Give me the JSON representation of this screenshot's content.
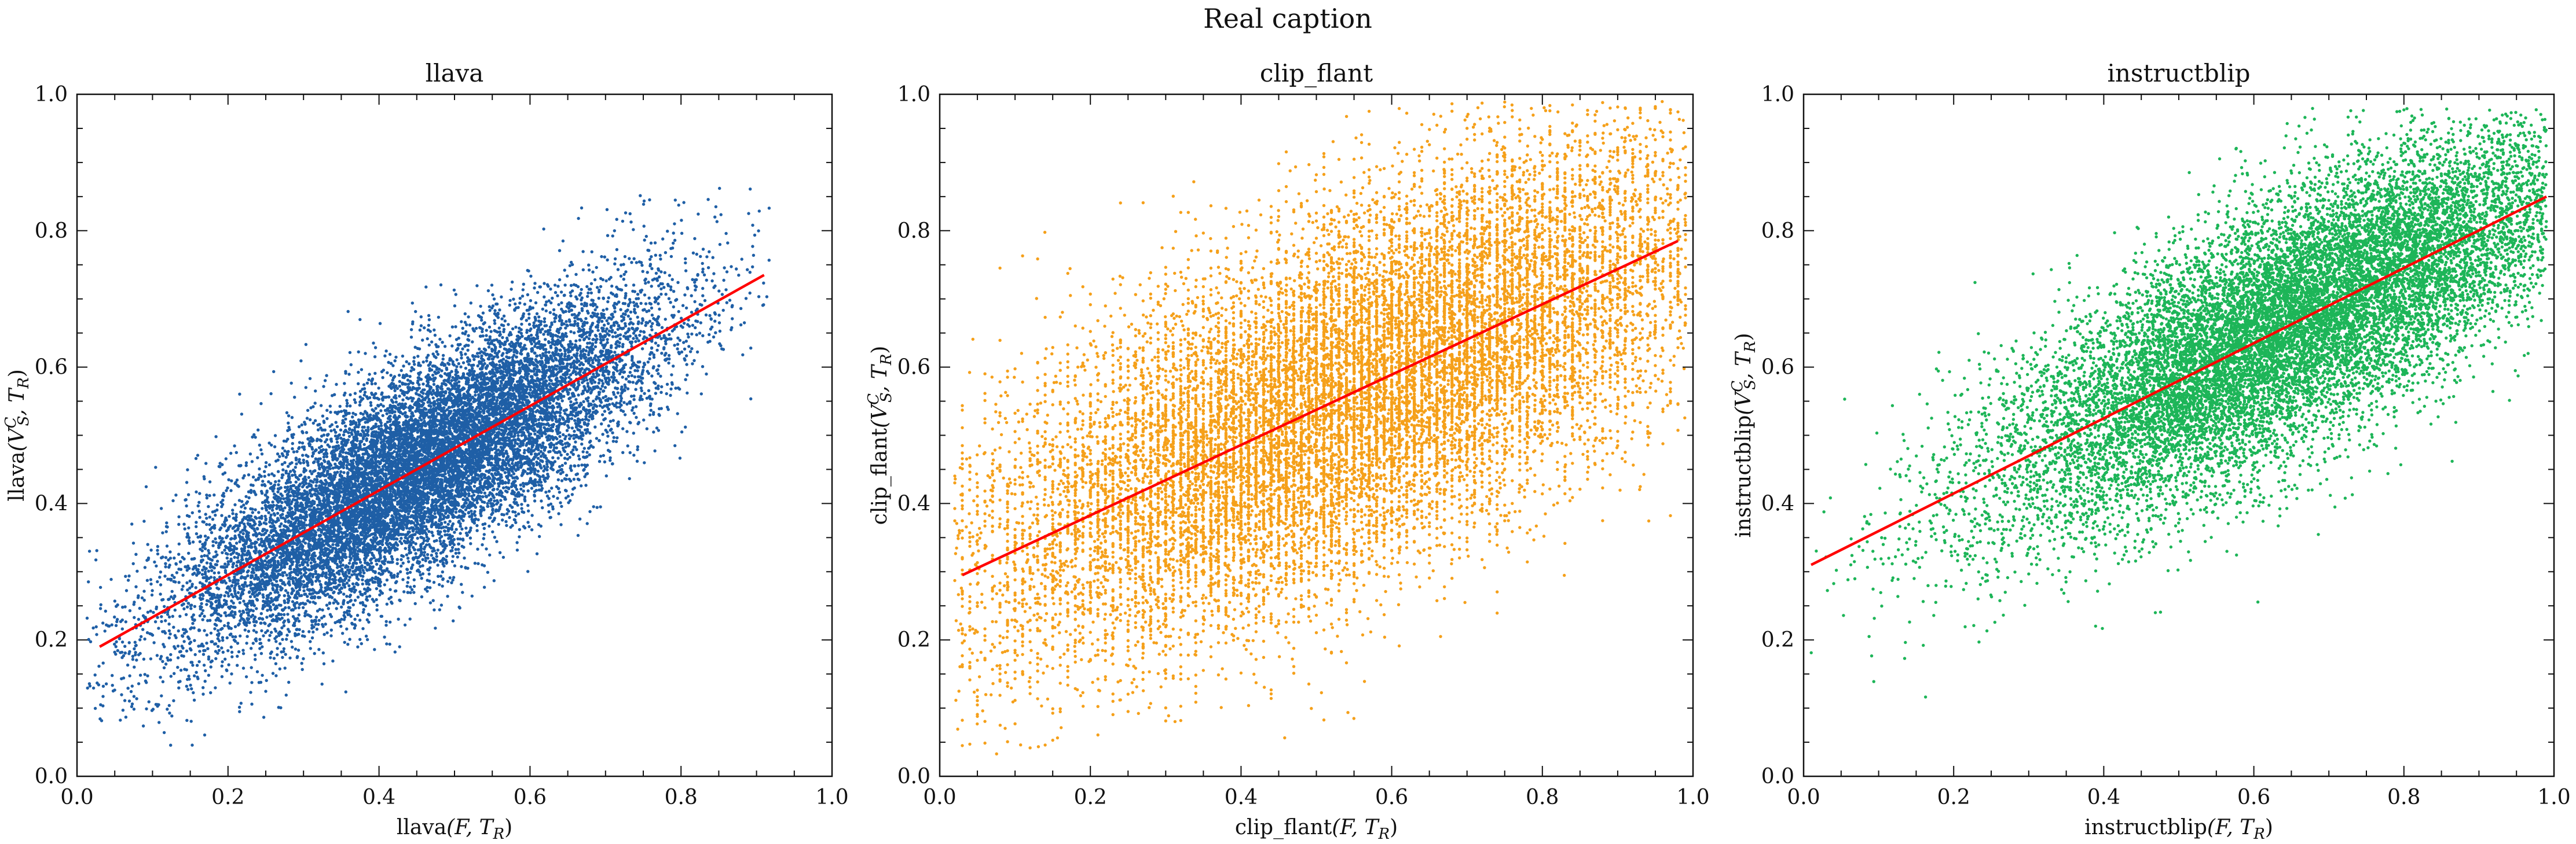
{
  "figure": {
    "suptitle": "Real caption"
  },
  "chart_data": [
    {
      "type": "scatter",
      "title": "llava",
      "xlabel_main": "llava",
      "xlabel_args": "(F, T",
      "xlabel_sub": "R",
      "ylabel_main": "llava",
      "ylabel_args": "(V",
      "ylabel_sup": "C",
      "ylabel_sub": "S",
      "ylabel_tail": ", T",
      "ylabel_tail_sub": "R",
      "xlim": [
        0,
        1
      ],
      "ylim": [
        0,
        1
      ],
      "xticks": [
        "0.0",
        "0.2",
        "0.4",
        "0.6",
        "0.8",
        "1.0"
      ],
      "yticks": [
        "0.0",
        "0.2",
        "0.4",
        "0.6",
        "0.8",
        "1.0"
      ],
      "color": "#1f5fa6",
      "n_points": 14000,
      "x_mean": 0.45,
      "x_sd": 0.16,
      "x_range": [
        0.01,
        0.92
      ],
      "y_range": [
        0.04,
        0.91
      ],
      "scatter_sd": 0.075,
      "fit_line": {
        "x": [
          0.03,
          0.91
        ],
        "y": [
          0.19,
          0.735
        ],
        "color": "#ff0000"
      }
    },
    {
      "type": "scatter",
      "title": "clip_flant",
      "xlabel_main": "clip_flant",
      "xlabel_args": "(F, T",
      "xlabel_sub": "R",
      "ylabel_main": "clip_flant",
      "ylabel_args": "(V",
      "ylabel_sup": "C",
      "ylabel_sub": "S",
      "ylabel_tail": ", T",
      "ylabel_tail_sub": "R",
      "xlim": [
        0,
        1
      ],
      "ylim": [
        0,
        1
      ],
      "xticks": [
        "0.0",
        "0.2",
        "0.4",
        "0.6",
        "0.8",
        "1.0"
      ],
      "yticks": [
        "0.0",
        "0.2",
        "0.4",
        "0.6",
        "0.8",
        "1.0"
      ],
      "color": "#f5a01a",
      "n_points": 16000,
      "x_mean": 0.55,
      "x_sd": 0.25,
      "x_range": [
        0.02,
        0.99
      ],
      "y_range": [
        0.03,
        0.99
      ],
      "scatter_sd": 0.13,
      "x_quantized_step": 0.01,
      "fit_line": {
        "x": [
          0.03,
          0.98
        ],
        "y": [
          0.295,
          0.785
        ],
        "color": "#ff0000"
      }
    },
    {
      "type": "scatter",
      "title": "instructblip",
      "xlabel_main": "instructblip",
      "xlabel_args": "(F, T",
      "xlabel_sub": "R",
      "ylabel_main": "instructblip",
      "ylabel_args": "(V",
      "ylabel_sup": "C",
      "ylabel_sub": "S",
      "ylabel_tail": ", T",
      "ylabel_tail_sub": "R",
      "xlim": [
        0,
        1
      ],
      "ylim": [
        0,
        1
      ],
      "xticks": [
        "0.0",
        "0.2",
        "0.4",
        "0.6",
        "0.8",
        "1.0"
      ],
      "yticks": [
        "0.0",
        "0.2",
        "0.4",
        "0.6",
        "0.8",
        "1.0"
      ],
      "color": "#1db558",
      "n_points": 14000,
      "x_mean": 0.65,
      "x_sd": 0.2,
      "x_range": [
        0.01,
        0.99
      ],
      "y_range": [
        0.01,
        0.98
      ],
      "scatter_sd": 0.09,
      "fit_line": {
        "x": [
          0.01,
          0.99
        ],
        "y": [
          0.31,
          0.85
        ],
        "color": "#ff0000"
      }
    }
  ]
}
